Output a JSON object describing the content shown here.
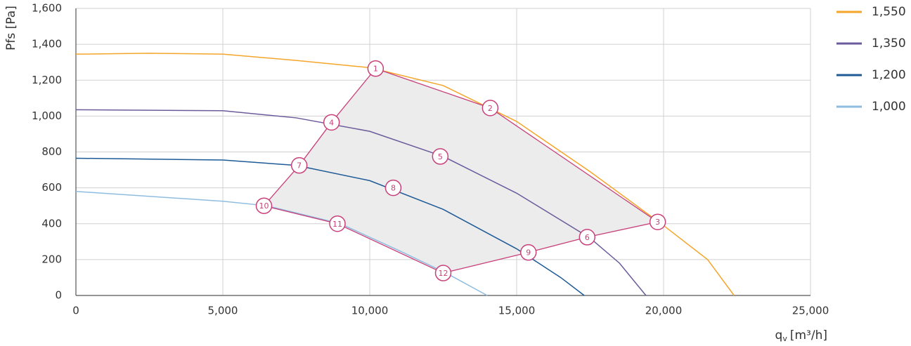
{
  "chart_data": {
    "type": "line",
    "y_label": "Pfs [Pa]",
    "x_label": {
      "main": "q",
      "sub": "v",
      "unit": "[m³/h]"
    },
    "xlim": [
      0,
      25000
    ],
    "ylim": [
      0,
      1600
    ],
    "xticks": [
      0,
      {
        "value": 5000,
        "label": "5,000"
      },
      {
        "value": 10000,
        "label": "10,000"
      },
      {
        "value": 15000,
        "label": "15,000"
      },
      {
        "value": 20000,
        "label": "20,000"
      },
      {
        "value": 25000,
        "label": "25,000"
      }
    ],
    "yticks": [
      0,
      200,
      400,
      600,
      800,
      {
        "value": 1000,
        "label": "1,000"
      },
      {
        "value": 1200,
        "label": "1,200"
      },
      {
        "value": 1400,
        "label": "1,400"
      },
      {
        "value": 1600,
        "label": "1,600"
      }
    ],
    "grid": true,
    "series": [
      {
        "name": "1,550",
        "color": "#f5a52a",
        "x": [
          0,
          2500,
          5000,
          7500,
          10000,
          12500,
          15000,
          17500,
          20000,
          21500,
          22400
        ],
        "values": [
          1345,
          1350,
          1345,
          1310,
          1270,
          1170,
          970,
          690,
          390,
          200,
          0
        ]
      },
      {
        "name": "1,350",
        "color": "#6b5b9b",
        "x": [
          0,
          5000,
          7500,
          10000,
          12500,
          15000,
          17500,
          18500,
          19400
        ],
        "values": [
          1035,
          1030,
          990,
          915,
          775,
          570,
          320,
          180,
          0
        ]
      },
      {
        "name": "1,200",
        "color": "#1d5a96",
        "x": [
          0,
          5000,
          7500,
          10000,
          12500,
          15000,
          16500,
          17300
        ],
        "values": [
          765,
          755,
          725,
          640,
          480,
          260,
          100,
          0
        ]
      },
      {
        "name": "1,000",
        "color": "#8fbde0",
        "x": [
          0,
          5000,
          6500,
          9000,
          11000,
          12600,
          14000
        ],
        "values": [
          580,
          525,
          500,
          400,
          250,
          125,
          0
        ]
      }
    ],
    "points": {
      "color": "#c8407a",
      "labels": [
        "1",
        "2",
        "3",
        "4",
        "5",
        "6",
        "7",
        "8",
        "9",
        "10",
        "11",
        "12"
      ],
      "x": [
        10200,
        14100,
        19800,
        8700,
        12400,
        17400,
        7600,
        10800,
        15400,
        6400,
        8900,
        12500
      ],
      "y": [
        1265,
        1045,
        410,
        965,
        775,
        325,
        725,
        600,
        240,
        500,
        400,
        125
      ]
    }
  }
}
